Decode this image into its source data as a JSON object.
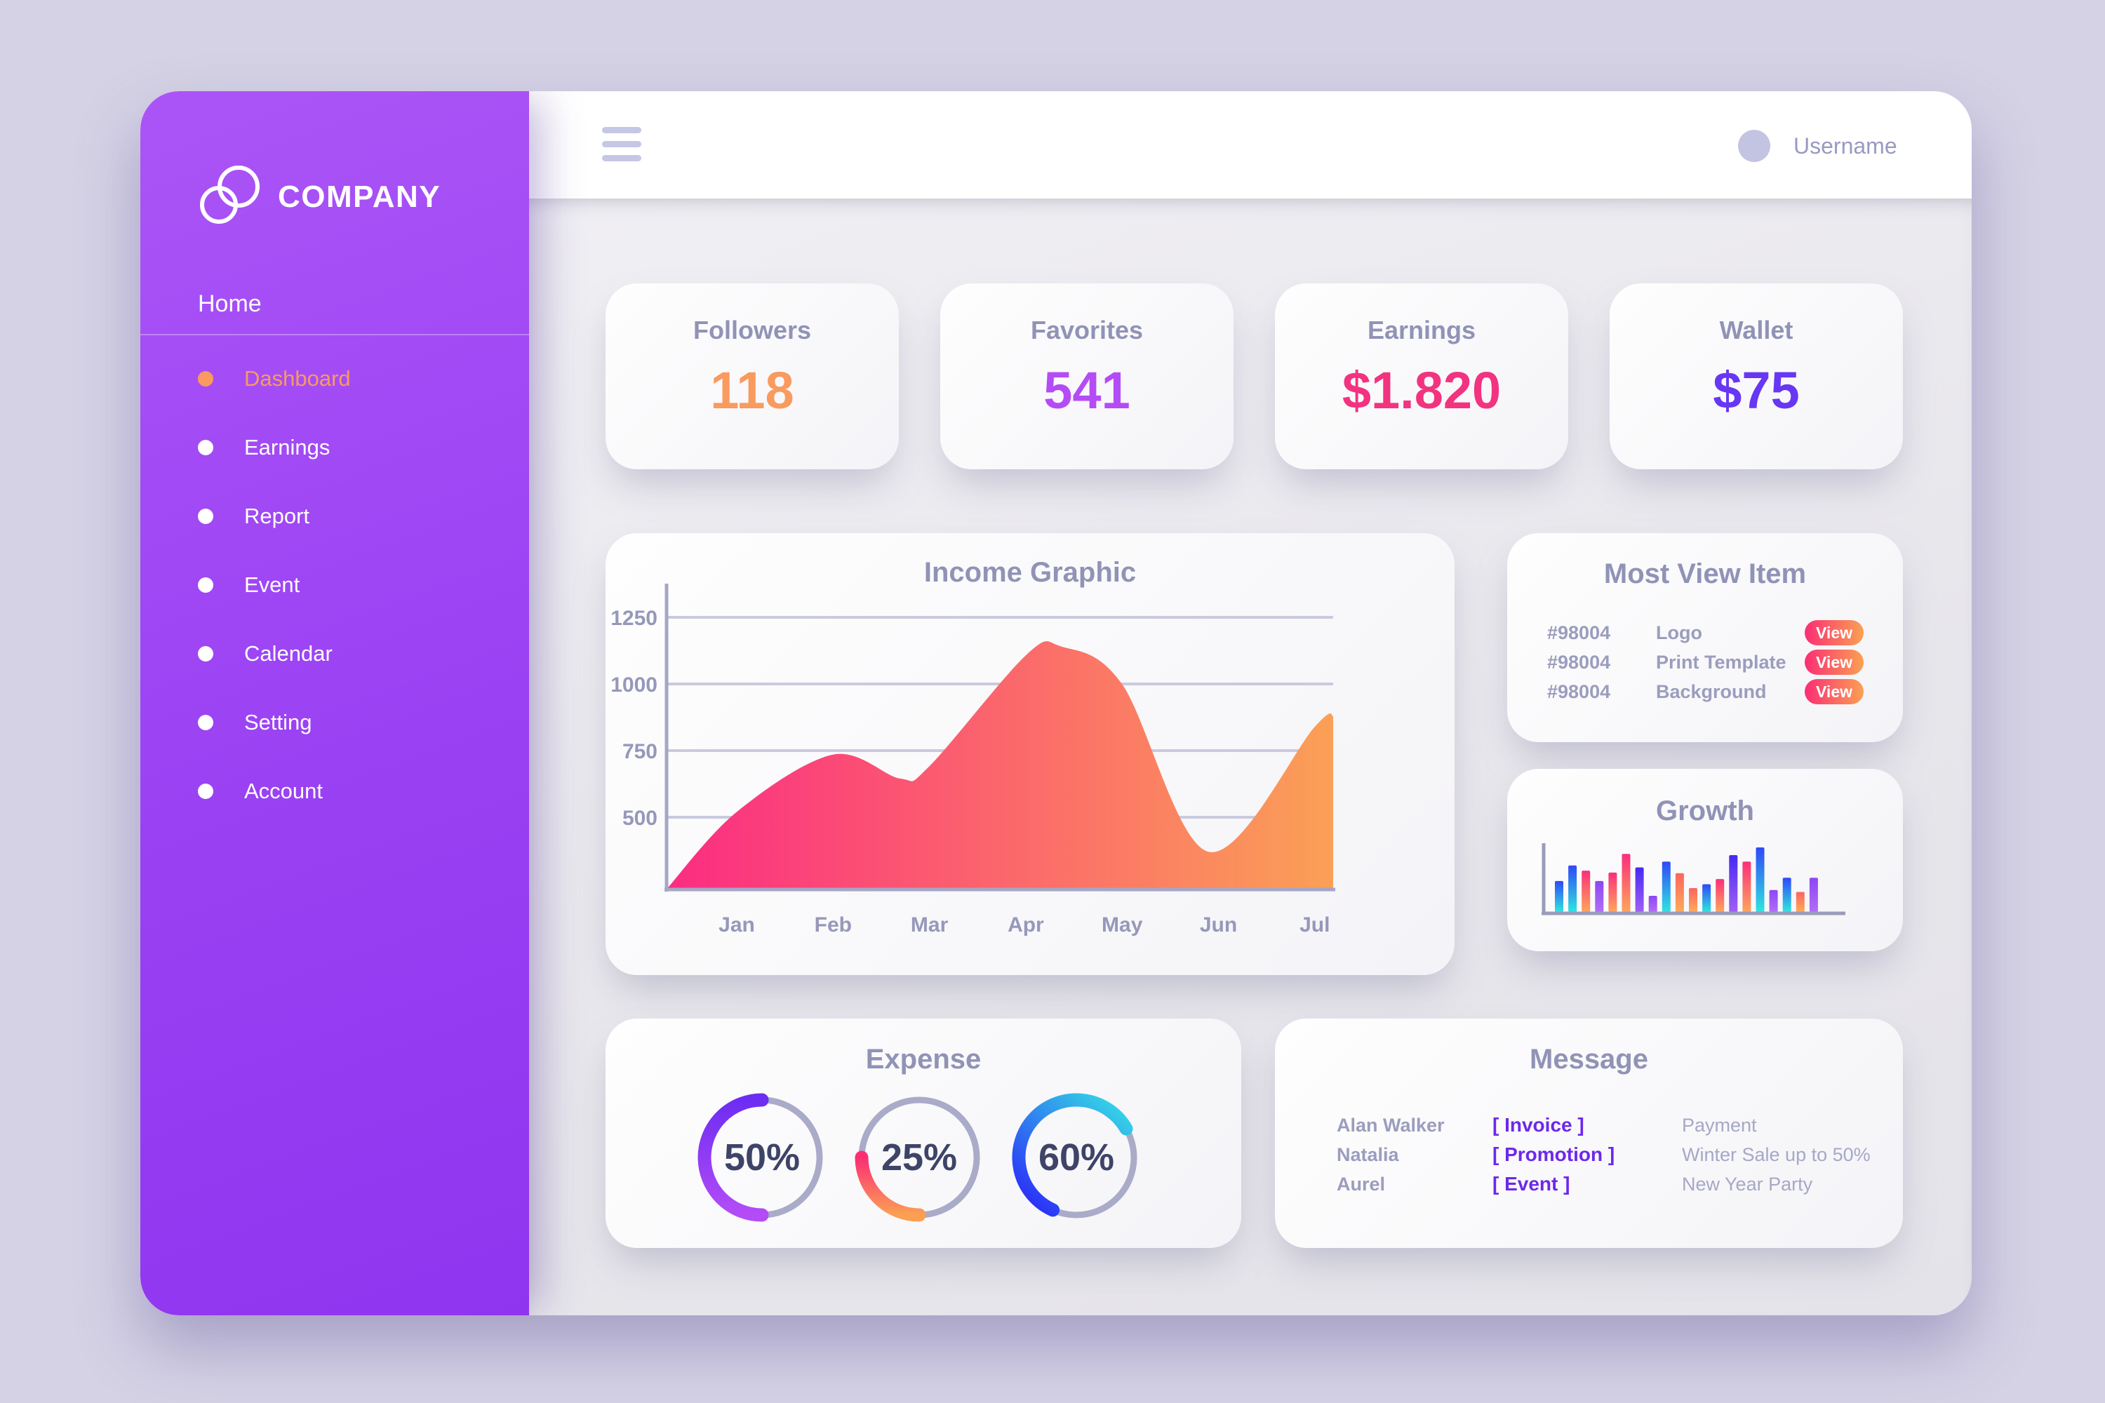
{
  "topbar": {
    "username": "Username"
  },
  "sidebar": {
    "company": "COMPANY",
    "home_label": "Home",
    "active_color": "#f99a5e",
    "items": [
      {
        "label": "Dashboard",
        "active": true
      },
      {
        "label": "Earnings",
        "active": false
      },
      {
        "label": "Report",
        "active": false
      },
      {
        "label": "Event",
        "active": false
      },
      {
        "label": "Calendar",
        "active": false
      },
      {
        "label": "Setting",
        "active": false
      },
      {
        "label": "Account",
        "active": false
      }
    ]
  },
  "stat_cards": [
    {
      "title": "Followers",
      "value": "118",
      "color": "#f99a5e"
    },
    {
      "title": "Favorites",
      "value": "541",
      "color": "#b44cf6"
    },
    {
      "title": "Earnings",
      "value": "$1.820",
      "color": "#f2337f"
    },
    {
      "title": "Wallet",
      "value": "$75",
      "color": "#6737f3"
    }
  ],
  "most_view": {
    "title": "Most View Item",
    "button_label": "View",
    "button_colors": [
      "#fb2e74",
      "#fba053"
    ],
    "rows": [
      {
        "id": "#98004",
        "name": "Logo"
      },
      {
        "id": "#98004",
        "name": "Print Template"
      },
      {
        "id": "#98004",
        "name": "Background"
      }
    ]
  },
  "message": {
    "title": "Message",
    "tag_color": "#6d28ec",
    "rows": [
      {
        "name": "Alan Walker",
        "tag": "[ Invoice ]",
        "text": "Payment"
      },
      {
        "name": "Natalia",
        "tag": "[ Promotion ]",
        "text": "Winter Sale up to 50%"
      },
      {
        "name": "Aurel",
        "tag": "[ Event ]",
        "text": "New Year Party"
      }
    ]
  },
  "chart_data": [
    {
      "type": "area",
      "title": "Income Graphic",
      "x_labels": [
        "Jan",
        "Feb",
        "Mar",
        "Apr",
        "May",
        "Jun",
        "Jul"
      ],
      "y_ticks": [
        1250,
        1000,
        750,
        500
      ],
      "ylim": [
        230,
        1350
      ],
      "monthly_values": {
        "Jan": 520,
        "Feb": 735,
        "Mar": 690,
        "Apr": 1110,
        "May": 1000,
        "Jun": 390,
        "Jul": 850
      },
      "curve_points": [
        [
          87,
          230
        ],
        [
          187,
          520
        ],
        [
          324,
          735
        ],
        [
          420,
          645
        ],
        [
          461,
          690
        ],
        [
          600,
          1110
        ],
        [
          650,
          1140
        ],
        [
          736,
          1000
        ],
        [
          860,
          370
        ],
        [
          1011,
          840
        ],
        [
          1037,
          880
        ]
      ],
      "gradient": [
        "#fb2c82",
        "#fba056"
      ],
      "axis_color": "#a5a7c6",
      "grid_color": "#c9cade",
      "label_color": "#9698ba",
      "grid": true,
      "legend": false
    },
    {
      "type": "bar",
      "title": "Growth",
      "values": [
        48,
        72,
        64,
        48,
        61,
        90,
        69,
        25,
        78,
        60,
        37,
        43,
        51,
        88,
        78,
        100,
        34,
        53,
        31,
        53
      ],
      "palettes": {
        "blue": [
          "#2f49f6",
          "#2fe5e0"
        ],
        "pink": [
          "#fb2e7c",
          "#fca65a"
        ],
        "violet": [
          "#8d46f3",
          "#b06ef5"
        ],
        "indigo": [
          "#4629f2",
          "#a05ff5"
        ],
        "salmon": [
          "#fb655f",
          "#fcab58"
        ]
      },
      "bar_colors": [
        "blue",
        "blue",
        "pink",
        "violet",
        "pink",
        "pink",
        "indigo",
        "violet",
        "blue",
        "salmon",
        "salmon",
        "blue",
        "pink",
        "indigo",
        "pink",
        "blue",
        "violet",
        "blue",
        "salmon",
        "violet"
      ],
      "axis_color": "#9a9cba"
    },
    {
      "type": "donut",
      "title": "Expense",
      "track_color": "#a9abc8",
      "text_color": "#3e4467",
      "donuts": [
        {
          "percent": 50,
          "label": "50%",
          "start_deg": 90,
          "end_deg": 270,
          "colors": [
            "#6d2df2",
            "#b44cf6"
          ],
          "gradient_dir": [
            0,
            0,
            0,
            1
          ]
        },
        {
          "percent": 25,
          "label": "25%",
          "start_deg": 180,
          "end_deg": 270,
          "colors": [
            "#fb2e74",
            "#fba053"
          ],
          "gradient_dir": [
            0,
            0,
            0,
            1
          ]
        },
        {
          "percent": 60,
          "label": "60%",
          "start_deg": 30,
          "end_deg": 246,
          "colors": [
            "#35dfe6",
            "#2b2ff7"
          ],
          "gradient_dir": [
            1,
            0,
            0.15,
            1
          ]
        }
      ]
    }
  ]
}
